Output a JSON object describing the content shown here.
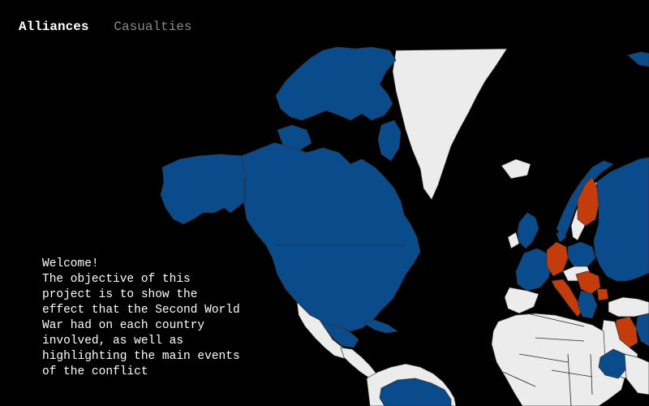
{
  "nav": {
    "tabs": [
      {
        "label": "Alliances",
        "active": true
      },
      {
        "label": "Casualties",
        "active": false
      }
    ]
  },
  "welcome": {
    "heading": "Welcome!",
    "body": "The objective of this project is to show the effect that the Second World War had on each country involved, as well as highlighting the main events of the conflict"
  },
  "map": {
    "colors": {
      "ocean": "#000000",
      "allies": "#0a4b8c",
      "axis": "#c43c0c",
      "neutral": "#ececec",
      "border": "#333333"
    }
  }
}
